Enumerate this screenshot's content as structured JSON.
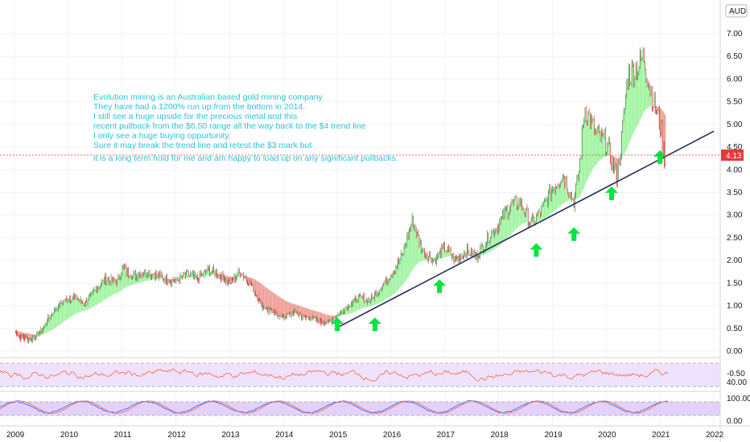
{
  "currency": "AUD",
  "last_price": "4.13",
  "colors": {
    "up": "#00e640",
    "down": "#e03b2c",
    "ribbon_up": "#7cf07c",
    "ribbon_down": "#e8776b",
    "trendline": "#1e2a5a",
    "arrow": "#00e640",
    "annotation": "#2ec4d6",
    "rsi_line": "#f4683a",
    "rsi_band": "#e9d8fb",
    "stoch_k": "#2962ff",
    "stoch_d": "#f4683a",
    "stoch_band": "#dcc6f7",
    "price_tag": "#e53935"
  },
  "annotation_lines": [
    "Evolution mining is an Australian based gold mining company",
    "They have had a 1200% run up from the bottom in 2014.",
    "I still see a huge upside for the precious metal and this",
    "recent pullback from the $6.50 range all the way back to the $4 trend line",
    "I only see a huge buying oppurtunity.",
    "Sure it may break the trend line and retest the $3 mark but",
    "it is a long term hold for me and am happy to load up on any significant pullbacks."
  ],
  "chart_data": [
    {
      "type": "line",
      "series": [
        {
          "x": [
            2009.0,
            2009.1,
            2009.3,
            2009.5,
            2009.7,
            2009.9,
            2010.1,
            2010.3,
            2010.5,
            2010.7,
            2010.9,
            2011.0,
            2011.2,
            2011.4,
            2011.6,
            2011.8,
            2012.0,
            2012.2,
            2012.4,
            2012.6,
            2012.8,
            2013.0,
            2013.2,
            2013.4,
            2013.6,
            2013.8,
            2014.0,
            2014.2,
            2014.4,
            2014.6,
            2014.8,
            2015.0,
            2015.2,
            2015.4,
            2015.6,
            2015.8,
            2016.0,
            2016.2,
            2016.4,
            2016.5,
            2016.6,
            2016.8,
            2017.0,
            2017.2,
            2017.4,
            2017.6,
            2017.8,
            2018.0,
            2018.2,
            2018.4,
            2018.6,
            2018.8,
            2019.0,
            2019.2,
            2019.4,
            2019.5,
            2019.6,
            2019.8,
            2020.0,
            2020.2,
            2020.3,
            2020.4,
            2020.6,
            2020.7,
            2020.8,
            2020.9,
            2021.0,
            2021.1
          ],
          "y": [
            0.45,
            0.3,
            0.25,
            0.45,
            0.85,
            1.1,
            1.2,
            1.05,
            1.35,
            1.6,
            1.5,
            1.85,
            1.65,
            1.75,
            1.7,
            1.6,
            1.55,
            1.7,
            1.6,
            1.8,
            1.7,
            1.5,
            1.75,
            1.45,
            1.0,
            0.85,
            0.75,
            0.85,
            0.75,
            0.7,
            0.6,
            0.8,
            1.0,
            1.2,
            1.1,
            1.4,
            1.7,
            2.1,
            2.9,
            2.5,
            2.2,
            2.0,
            2.3,
            2.0,
            2.2,
            2.1,
            2.5,
            2.8,
            3.2,
            3.3,
            2.8,
            3.1,
            3.6,
            3.9,
            3.3,
            4.0,
            5.4,
            4.8,
            4.6,
            3.8,
            4.8,
            6.1,
            6.3,
            6.5,
            5.9,
            5.4,
            5.0,
            4.13
          ]
        }
      ],
      "x_ticks": [
        "2009",
        "2010",
        "2011",
        "2012",
        "2013",
        "2014",
        "2015",
        "2016",
        "2017",
        "2018",
        "2019",
        "2020",
        "2021",
        "2022"
      ],
      "y_ticks": [
        "-0.50",
        "0.00",
        "0.50",
        "1.00",
        "1.50",
        "2.00",
        "2.50",
        "3.00",
        "3.50",
        "4.00",
        "4.50",
        "5.00",
        "5.50",
        "6.00",
        "6.50",
        "7.00"
      ],
      "ylim": [
        -0.5,
        7.0
      ],
      "xlim": [
        2009.0,
        2022.0
      ],
      "trendline": {
        "x": [
          2015.0,
          2022.0
        ],
        "y": [
          0.52,
          4.85
        ]
      },
      "buy_arrows": [
        2015.0,
        2015.7,
        2016.9,
        2018.7,
        2019.4,
        2020.1,
        2021.0
      ]
    },
    {
      "type": "line",
      "indicator": "rsi",
      "y_ticks": [
        "40.00"
      ],
      "ylim": [
        20,
        80
      ]
    },
    {
      "type": "line",
      "indicator": "stochastic",
      "y_ticks": [
        "100.00",
        "0.00"
      ],
      "ylim": [
        0,
        100
      ]
    }
  ]
}
